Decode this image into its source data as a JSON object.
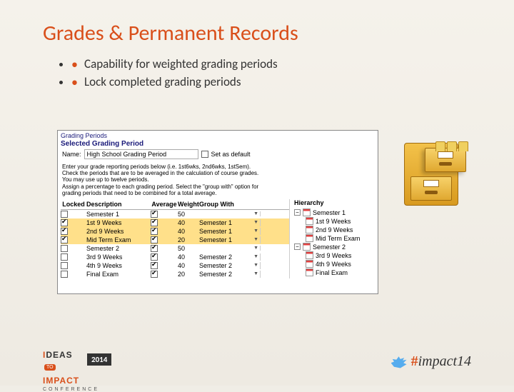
{
  "title": "Grades & Permanent Records",
  "bullets": [
    "Capability for weighted grading periods",
    "Lock completed grading periods"
  ],
  "app": {
    "tab_label": "Grading Periods",
    "section_label": "Selected Grading Period",
    "name_label": "Name:",
    "name_value": "High School Grading Period",
    "default_label": "Set as default",
    "default_checked": false,
    "instructions": [
      "Enter your grade reporting periods below (i.e. 1st6wks, 2nd6wks, 1stSem).",
      "Check the periods that are to be averaged in the calculation of course grades.",
      "You may use up to twelve periods.",
      "Assign a percentage to each grading period. Select the \"group with\" option for",
      "grading periods that need to be combined for a total average."
    ],
    "columns": [
      "Locked",
      "Description",
      "Average",
      "Weight",
      "Group With"
    ],
    "rows": [
      {
        "locked": false,
        "desc": "Semester 1",
        "avg": true,
        "weight": 50,
        "group": "<none>",
        "alt": false
      },
      {
        "locked": true,
        "desc": "1st 9 Weeks",
        "avg": true,
        "weight": 40,
        "group": "Semester 1",
        "alt": true
      },
      {
        "locked": true,
        "desc": "2nd 9 Weeks",
        "avg": true,
        "weight": 40,
        "group": "Semester 1",
        "alt": true
      },
      {
        "locked": true,
        "desc": "Mid Term Exam",
        "avg": true,
        "weight": 20,
        "group": "Semester 1",
        "alt": true
      },
      {
        "locked": false,
        "desc": "Semester 2",
        "avg": true,
        "weight": 50,
        "group": "<none>",
        "alt": false
      },
      {
        "locked": false,
        "desc": "3rd 9 Weeks",
        "avg": true,
        "weight": 40,
        "group": "Semester 2",
        "alt": false
      },
      {
        "locked": false,
        "desc": "4th 9 Weeks",
        "avg": true,
        "weight": 40,
        "group": "Semester 2",
        "alt": false
      },
      {
        "locked": false,
        "desc": "Final Exam",
        "avg": true,
        "weight": 20,
        "group": "Semester 2",
        "alt": false
      }
    ],
    "hierarchy_label": "Hierarchy",
    "hierarchy": [
      {
        "label": "Semester 1",
        "children": [
          "1st 9 Weeks",
          "2nd 9 Weeks",
          "Mid Term Exam"
        ]
      },
      {
        "label": "Semester 2",
        "children": [
          "3rd 9 Weeks",
          "4th 9 Weeks",
          "Final Exam"
        ]
      }
    ]
  },
  "footer": {
    "ideas": "IDEAS",
    "impact": "IMPACT",
    "to": "TO",
    "conf": "CONFERENCE",
    "year": "2014",
    "hashtag": "impact14"
  },
  "colors": {
    "accent": "#d94f1a",
    "highlight": "#ffe08a"
  }
}
